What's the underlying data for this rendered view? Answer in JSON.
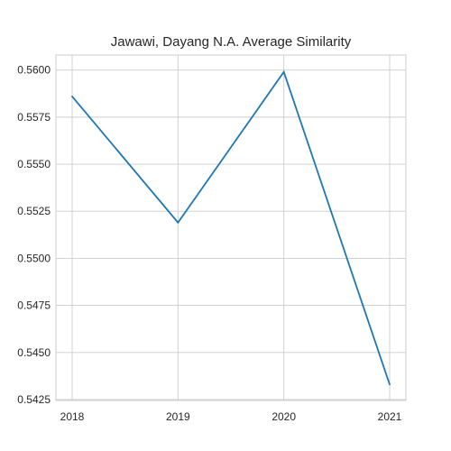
{
  "chart_data": {
    "type": "line",
    "title": "Jawawi, Dayang N.A. Average Similarity",
    "xlabel": "",
    "ylabel": "",
    "x": [
      "2018",
      "2019",
      "2020",
      "2021"
    ],
    "series": [
      {
        "values": [
          0.5586,
          0.5519,
          0.5599,
          0.5433
        ],
        "color": "#1f77b4"
      }
    ],
    "yticks": [
      0.5425,
      0.545,
      0.5475,
      0.55,
      0.5525,
      0.555,
      0.5575,
      0.56
    ],
    "ytick_labels": [
      "0.5425",
      "0.5450",
      "0.5475",
      "0.5500",
      "0.5525",
      "0.5550",
      "0.5575",
      "0.5600"
    ],
    "ylim": [
      0.54245,
      0.5608
    ],
    "grid": true,
    "background": "#ffffff",
    "grid_color": "#cccccc"
  }
}
